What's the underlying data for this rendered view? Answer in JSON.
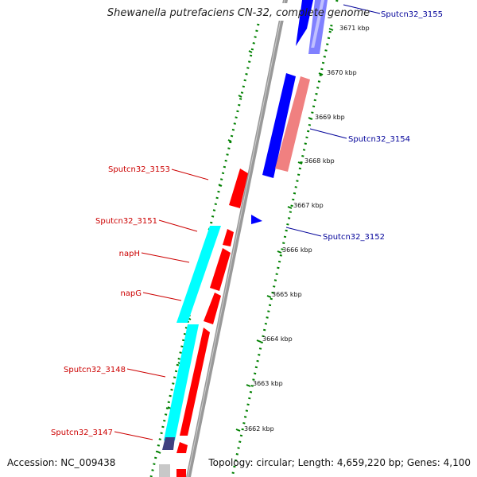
{
  "title": "Shewanella putrefaciens CN-32, complete genome",
  "accession": "Accession: NC_009438",
  "topology": "Topology: circular; Length: 4,659,220 bp; Genes: 4,100",
  "ticks": [
    "3671 kbp",
    "3670 kbp",
    "3669 kbp",
    "3668 kbp",
    "3667 kbp",
    "3666 kbp",
    "3665 kbp",
    "3664 kbp",
    "3663 kbp",
    "3662 kbp"
  ],
  "left_labels": [
    "Sputcn32_3153",
    "Sputcn32_3151",
    "napH",
    "napG",
    "Sputcn32_3148",
    "Sputcn32_3147"
  ],
  "right_labels": [
    "Sputcn32_3155",
    "Sputcn32_3154",
    "Sputcn32_3152"
  ],
  "colors": {
    "forward_cds": "#ff0000",
    "reverse_cds": "#0000ff",
    "rna": "#00ffff",
    "forward_gene": "#f08080",
    "reverse_gene": "#8080ff",
    "backbone": "#999999",
    "tick_mark": "#008000",
    "left_label": "#cc0000",
    "right_label": "#000099"
  }
}
